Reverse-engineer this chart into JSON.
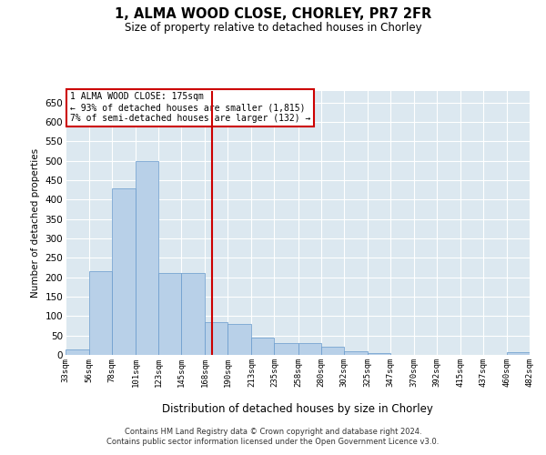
{
  "title": "1, ALMA WOOD CLOSE, CHORLEY, PR7 2FR",
  "subtitle": "Size of property relative to detached houses in Chorley",
  "xlabel": "Distribution of detached houses by size in Chorley",
  "ylabel": "Number of detached properties",
  "footer_line1": "Contains HM Land Registry data © Crown copyright and database right 2024.",
  "footer_line2": "Contains public sector information licensed under the Open Government Licence v3.0.",
  "property_size": 175,
  "annotation_title": "1 ALMA WOOD CLOSE: 175sqm",
  "annotation_line2": "← 93% of detached houses are smaller (1,815)",
  "annotation_line3": "7% of semi-detached houses are larger (132) →",
  "bar_color": "#b8d0e8",
  "bar_edge_color": "#6699cc",
  "vline_color": "#cc0000",
  "background_color": "#dce8f0",
  "bins": [
    33,
    56,
    78,
    101,
    123,
    145,
    168,
    190,
    213,
    235,
    258,
    280,
    302,
    325,
    347,
    370,
    392,
    415,
    437,
    460,
    482
  ],
  "bin_labels": [
    "33sqm",
    "56sqm",
    "78sqm",
    "101sqm",
    "123sqm",
    "145sqm",
    "168sqm",
    "190sqm",
    "213sqm",
    "235sqm",
    "258sqm",
    "280sqm",
    "302sqm",
    "325sqm",
    "347sqm",
    "370sqm",
    "392sqm",
    "415sqm",
    "437sqm",
    "460sqm",
    "482sqm"
  ],
  "bar_heights": [
    15,
    215,
    430,
    500,
    210,
    210,
    85,
    80,
    45,
    30,
    30,
    20,
    10,
    5,
    0,
    0,
    0,
    0,
    0,
    8
  ],
  "ylim": [
    0,
    680
  ],
  "yticks": [
    0,
    50,
    100,
    150,
    200,
    250,
    300,
    350,
    400,
    450,
    500,
    550,
    600,
    650
  ]
}
